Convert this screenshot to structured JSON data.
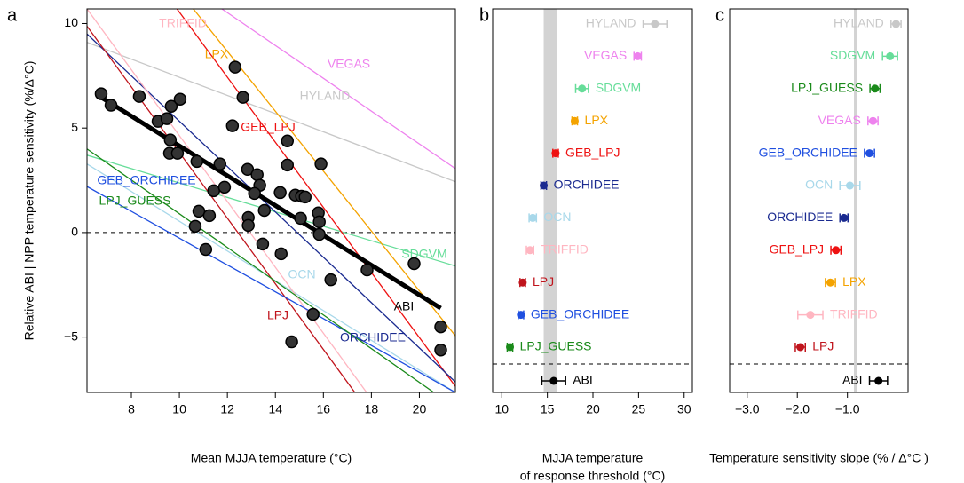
{
  "chart_data": [
    {
      "type": "scatter",
      "panel_label": "a",
      "xlabel": "Mean MJJA temperature (°C)",
      "ylabel": "Relative ABI | NPP temperature sensitivity (%/Δ°C)",
      "xlim": [
        6.15,
        21.5
      ],
      "ylim": [
        -7.65,
        10.7
      ],
      "xticks": [
        8,
        10,
        12,
        14,
        16,
        18,
        20
      ],
      "yticks": [
        {
          "value": -5,
          "label": "−5"
        },
        0,
        5,
        10
      ],
      "hline": 0,
      "point_color": "#000000",
      "x": [
        6.74,
        7.15,
        8.33,
        9.11,
        9.48,
        9.66,
        10.03,
        9.62,
        9.59,
        9.92,
        10.73,
        11.69,
        12.32,
        12.65,
        12.21,
        12.84,
        13.24,
        13.35,
        13.13,
        11.43,
        11.88,
        12.87,
        12.87,
        10.81,
        11.25,
        10.66,
        11.1,
        13.54,
        14.2,
        14.5,
        14.5,
        14.83,
        15.09,
        15.24,
        15.05,
        15.9,
        15.79,
        15.83,
        15.83,
        13.47,
        14.24,
        16.31,
        17.82,
        19.78,
        15.57,
        14.68,
        20.89,
        20.89
      ],
      "y": [
        6.64,
        6.09,
        6.51,
        5.32,
        5.45,
        6.04,
        6.38,
        4.43,
        3.79,
        3.79,
        3.4,
        3.28,
        7.91,
        6.47,
        5.11,
        3.02,
        2.77,
        2.26,
        1.87,
        2.0,
        2.17,
        0.72,
        0.34,
        1.02,
        0.81,
        0.3,
        -0.81,
        1.06,
        1.91,
        3.23,
        4.38,
        1.79,
        1.74,
        1.7,
        0.68,
        3.28,
        0.94,
        0.51,
        -0.09,
        -0.55,
        -1.02,
        -2.26,
        -1.79,
        -1.49,
        -3.91,
        -5.23,
        -4.51,
        -5.62
      ],
      "lines": [
        {
          "name": "HYLAND",
          "color": "#c8c8c8",
          "x": [
            6.15,
            21.5
          ],
          "y": [
            9.1,
            2.43
          ]
        },
        {
          "name": "VEGAS",
          "color": "#ee82ee",
          "x": [
            11.77,
            21.5
          ],
          "y": [
            10.7,
            3.06
          ]
        },
        {
          "name": "SDGVM",
          "color": "#66dd99",
          "x": [
            6.15,
            21.5
          ],
          "y": [
            3.7,
            -1.6
          ]
        },
        {
          "name": "LPX",
          "color": "#f4a300",
          "x": [
            10.58,
            21.5
          ],
          "y": [
            10.7,
            -4.94
          ]
        },
        {
          "name": "GEB_LPJ",
          "color": "#ee1111",
          "x": [
            9.9,
            21.5
          ],
          "y": [
            10.7,
            -7.36
          ]
        },
        {
          "name": "ORCHIDEE",
          "color": "#1a2a90",
          "x": [
            6.15,
            21.5
          ],
          "y": [
            9.5,
            -7.15
          ]
        },
        {
          "name": "OCN",
          "color": "#a8d8ea",
          "x": [
            6.15,
            21.5
          ],
          "y": [
            3.28,
            -7.65
          ]
        },
        {
          "name": "TRIFFID",
          "color": "#ffb6c1",
          "x": [
            6.15,
            17.8
          ],
          "y": [
            10.7,
            -7.65
          ]
        },
        {
          "name": "LPJ",
          "color": "#c0141c",
          "x": [
            6.15,
            17.31
          ],
          "y": [
            9.87,
            -7.65
          ]
        },
        {
          "name": "GEB_ORCHIDEE",
          "color": "#1f4fe0",
          "x": [
            6.15,
            21.5
          ],
          "y": [
            2.2,
            -7.65
          ]
        },
        {
          "name": "LPJ_GUESS",
          "color": "#1a8a1a",
          "x": [
            6.15,
            20.6
          ],
          "y": [
            4.0,
            -7.65
          ]
        },
        {
          "name": "ABI",
          "color": "#000000",
          "x": [
            6.74,
            20.89
          ],
          "y": [
            6.47,
            -3.62
          ]
        }
      ]
    },
    {
      "type": "dot",
      "panel_label": "b",
      "xlabel": [
        "MJJA temperature",
        "of response threshold (°C)"
      ],
      "xlim": [
        9.0,
        30.9
      ],
      "xticks": [
        10,
        15,
        20,
        25,
        30
      ],
      "band": [
        14.6,
        16.1
      ],
      "categories": [
        "HYLAND",
        "VEGAS",
        "SDGVM",
        "LPX",
        "GEB_LPJ",
        "ORCHIDEE",
        "OCN",
        "TRIFFID",
        "LPJ",
        "GEB_ORCHIDEE",
        "LPJ_GUESS",
        "ABI"
      ],
      "colors": [
        "#c8c8c8",
        "#ee82ee",
        "#66dd99",
        "#f4a300",
        "#ee1111",
        "#1a2a90",
        "#a8d8ea",
        "#ffb6c1",
        "#c0141c",
        "#1f4fe0",
        "#1a8a1a",
        "#000000"
      ],
      "values": [
        26.8,
        24.9,
        18.8,
        18.0,
        15.9,
        14.6,
        13.4,
        13.1,
        12.3,
        12.1,
        10.9,
        15.7
      ],
      "errors": [
        1.3,
        0.4,
        0.7,
        0.3,
        0.3,
        0.3,
        0.4,
        0.4,
        0.3,
        0.3,
        0.3,
        1.3
      ]
    },
    {
      "type": "dot",
      "panel_label": "c",
      "xlabel": [
        "Temperature sensitivity slope (% / Δ°C )"
      ],
      "xlim": [
        -3.35,
        0.21
      ],
      "xticks": [
        {
          "value": -3,
          "label": "−3.0"
        },
        {
          "value": -2,
          "label": "−2.0"
        },
        {
          "value": -1,
          "label": "−1.0"
        }
      ],
      "band": [
        -0.87,
        -0.81
      ],
      "categories": [
        "HYLAND",
        "SDGVM",
        "LPJ_GUESS",
        "VEGAS",
        "GEB_ORCHIDEE",
        "OCN",
        "ORCHIDEE",
        "GEB_LPJ",
        "LPX",
        "TRIFFID",
        "LPJ",
        "ABI"
      ],
      "colors": [
        "#c8c8c8",
        "#66dd99",
        "#1a8a1a",
        "#ee82ee",
        "#1f4fe0",
        "#a8d8ea",
        "#1a2a90",
        "#ee1111",
        "#f4a300",
        "#ffb6c1",
        "#c0141c",
        "#000000"
      ],
      "values": [
        -0.03,
        -0.15,
        -0.45,
        -0.49,
        -0.56,
        -0.95,
        -1.07,
        -1.23,
        -1.34,
        -1.74,
        -1.94,
        -0.38
      ],
      "errors": [
        0.1,
        0.15,
        0.1,
        0.1,
        0.1,
        0.2,
        0.08,
        0.1,
        0.1,
        0.25,
        0.1,
        0.18
      ]
    }
  ]
}
